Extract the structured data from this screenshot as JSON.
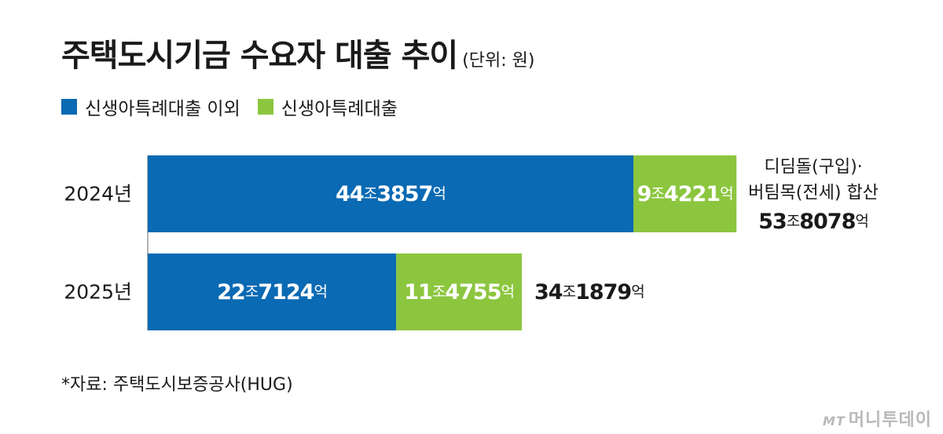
{
  "title": "주택도시기금 수요자 대출 추이",
  "unit": "(단위: 원)",
  "source": "*자료: 주택도시보증공사(HUG)",
  "logo": {
    "mark": "MT",
    "text": "머니투데이"
  },
  "colors": {
    "blue": "#0a6ab3",
    "green": "#8cc63f",
    "axis": "#9a9a9a"
  },
  "chart_data": {
    "type": "bar",
    "orientation": "horizontal",
    "stacked": true,
    "categories": [
      "2024년",
      "2025년"
    ],
    "series": [
      {
        "name": "신생아특례대출 이외",
        "values": [
          443857,
          227124
        ],
        "labels": [
          "44조3857억",
          "22조7124억"
        ],
        "color": "#0a6ab3"
      },
      {
        "name": "신생아특례대출",
        "values": [
          94221,
          114755
        ],
        "labels": [
          "9조4221억",
          "11조4755억"
        ],
        "color": "#8cc63f"
      }
    ],
    "totals": {
      "values": [
        538078,
        341879
      ],
      "labels": [
        "53조8078억",
        "34조1879억"
      ],
      "notes": [
        "디딤돌(구입)·\n버팀목(전세) 합산",
        ""
      ]
    },
    "value_unit": "억 원",
    "legend_position": "top-left",
    "grid": false,
    "xlabel": "",
    "ylabel": ""
  }
}
